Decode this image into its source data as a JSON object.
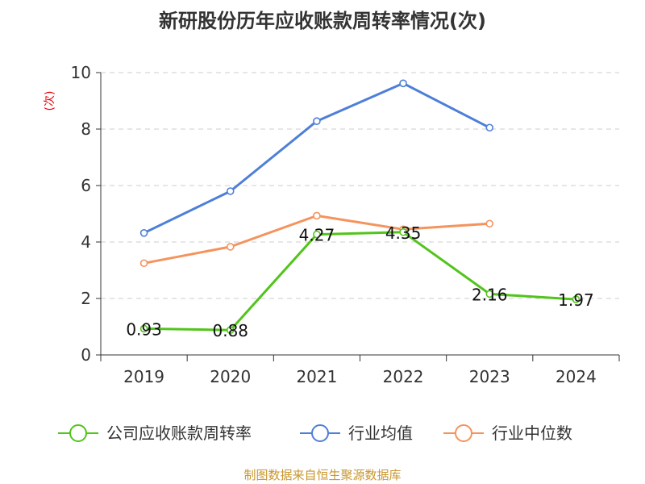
{
  "chart_data": {
    "type": "line",
    "title": "新研股份历年应收账款周转率情况(次)",
    "ylabel": "(次)",
    "xlabel": "",
    "categories": [
      "2019",
      "2020",
      "2021",
      "2022",
      "2023",
      "2024"
    ],
    "ylim": [
      0,
      10
    ],
    "yticks": [
      0,
      2,
      4,
      6,
      8,
      10
    ],
    "grid": true,
    "legend_position": "bottom-center",
    "series": [
      {
        "name": "公司应收账款周转率",
        "color": "#52c41a",
        "values": [
          0.93,
          0.88,
          4.27,
          4.35,
          2.16,
          1.97
        ],
        "value_labels": [
          "0.93",
          "0.88",
          "4.27",
          "4.35",
          "2.16",
          "1.97"
        ],
        "show_labels": true,
        "marker": "circle"
      },
      {
        "name": "行业均值",
        "color": "#4e7fd8",
        "values": [
          4.32,
          5.8,
          8.28,
          9.62,
          8.05,
          null
        ],
        "show_labels": false,
        "marker": "circle"
      },
      {
        "name": "行业中位数",
        "color": "#f5935c",
        "values": [
          3.25,
          3.83,
          4.93,
          4.45,
          4.65,
          null
        ],
        "show_labels": false,
        "marker": "circle"
      }
    ]
  },
  "footer": {
    "source_text": "制图数据来自恒生聚源数据库"
  },
  "colors": {
    "ylabel": "#e8000b",
    "footer": "#c8962e",
    "axis": "#333333",
    "grid": "#cccccc"
  }
}
